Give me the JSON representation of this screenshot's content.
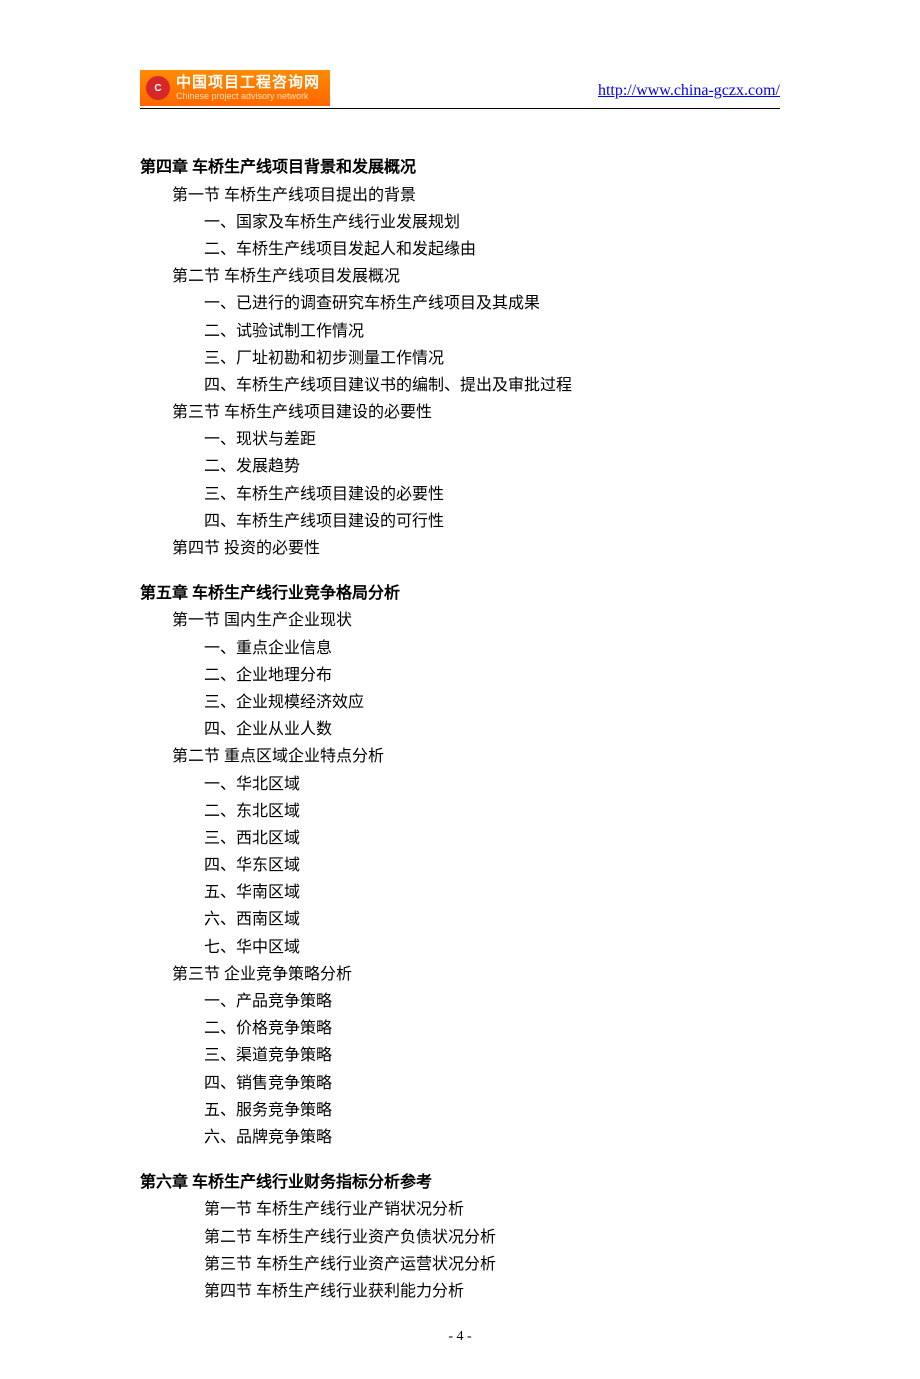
{
  "header": {
    "logo_cn": "中国项目工程咨询网",
    "logo_en": "Chinese project advisory network",
    "logo_badge": "C",
    "url": "http://www.china-gczx.com/"
  },
  "chapters": [
    {
      "title": "第四章 车桥生产线项目背景和发展概况",
      "sections": [
        {
          "title": "第一节 车桥生产线项目提出的背景",
          "items": [
            "一、国家及车桥生产线行业发展规划",
            "二、车桥生产线项目发起人和发起缘由"
          ]
        },
        {
          "title": "第二节 车桥生产线项目发展概况",
          "items": [
            "一、已进行的调查研究车桥生产线项目及其成果",
            "二、试验试制工作情况",
            "三、厂址初勘和初步测量工作情况",
            "四、车桥生产线项目建议书的编制、提出及审批过程"
          ]
        },
        {
          "title": "第三节 车桥生产线项目建设的必要性",
          "items": [
            "一、现状与差距",
            "二、发展趋势",
            "三、车桥生产线项目建设的必要性",
            "四、车桥生产线项目建设的可行性"
          ]
        },
        {
          "title": "第四节  投资的必要性",
          "items": []
        }
      ]
    },
    {
      "title": "第五章 车桥生产线行业竞争格局分析",
      "sections": [
        {
          "title": "第一节  国内生产企业现状",
          "items": [
            "一、重点企业信息",
            "二、企业地理分布",
            "三、企业规模经济效应",
            "四、企业从业人数"
          ]
        },
        {
          "title": "第二节  重点区域企业特点分析",
          "items": [
            "一、华北区域",
            "二、东北区域",
            "三、西北区域",
            "四、华东区域",
            "五、华南区域",
            "六、西南区域",
            "七、华中区域"
          ]
        },
        {
          "title": "第三节  企业竞争策略分析",
          "items": [
            "一、产品竞争策略",
            "二、价格竞争策略",
            "三、渠道竞争策略",
            "四、销售竞争策略",
            "五、服务竞争策略",
            "六、品牌竞争策略"
          ]
        }
      ]
    },
    {
      "title": "第六章 车桥生产线行业财务指标分析参考",
      "indent_sections": true,
      "sections": [
        {
          "title": "第一节 车桥生产线行业产销状况分析",
          "items": []
        },
        {
          "title": "第二节 车桥生产线行业资产负债状况分析",
          "items": []
        },
        {
          "title": "第三节 车桥生产线行业资产运营状况分析",
          "items": []
        },
        {
          "title": "第四节 车桥生产线行业获利能力分析",
          "items": []
        }
      ]
    }
  ],
  "page_number": "- 4 -"
}
